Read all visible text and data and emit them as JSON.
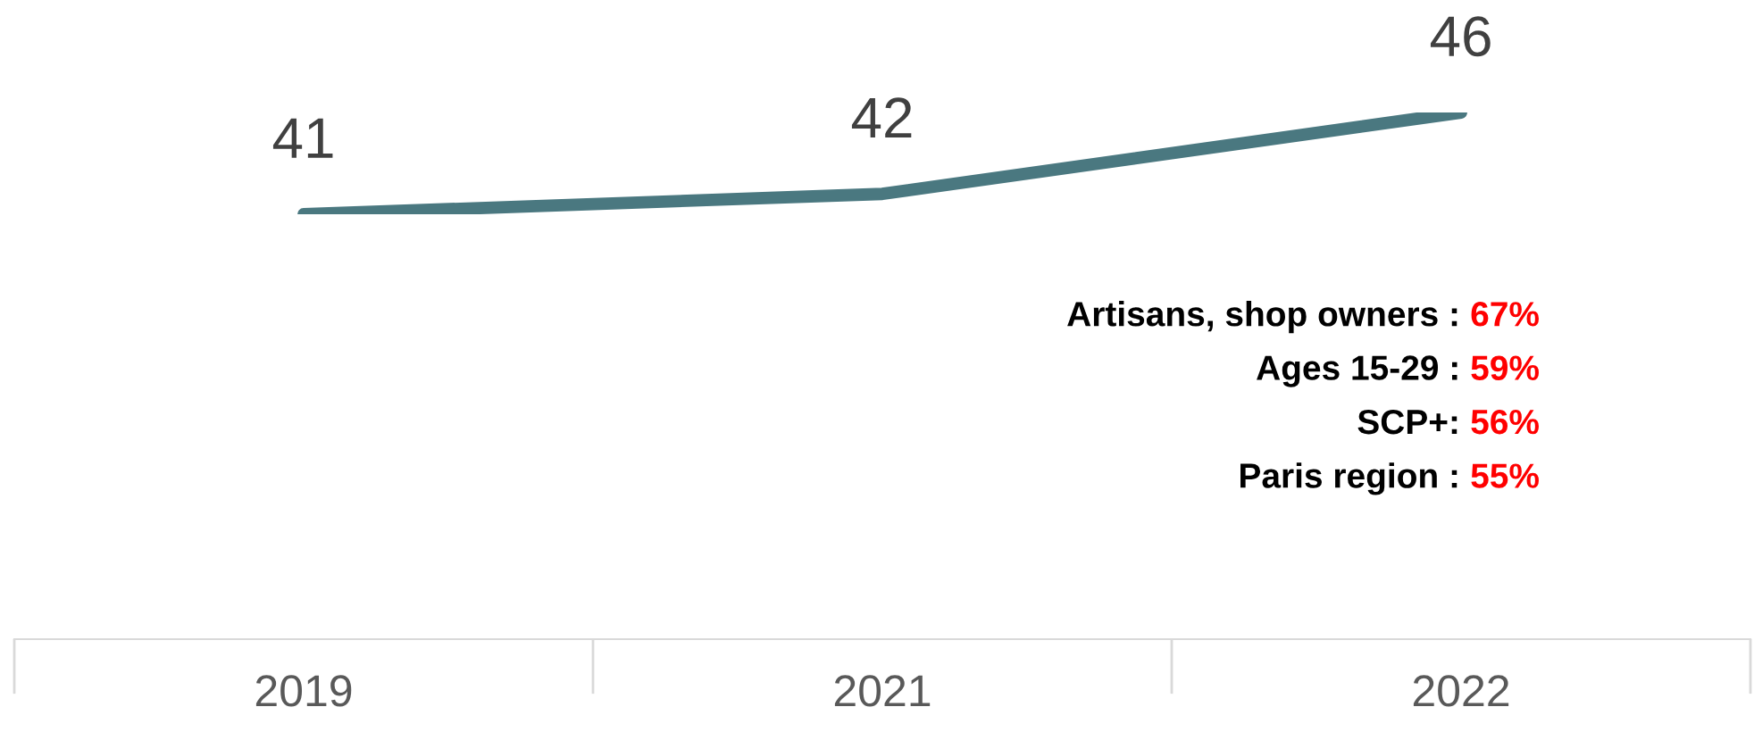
{
  "chart_data": {
    "type": "line",
    "categories": [
      "2019",
      "2021",
      "2022"
    ],
    "series": [
      {
        "color": "#4a7880",
        "values": [
          41,
          42,
          46
        ]
      }
    ],
    "data_labels": true,
    "tick_labels": "x",
    "grid": false,
    "legend": false,
    "marker": "none",
    "line_style": "solid",
    "annotations": [
      "Artisans, shop owners : 67%",
      "Ages 15-29 : 59%",
      "SCP+: 56%",
      "Paris region : 55%"
    ]
  }
}
